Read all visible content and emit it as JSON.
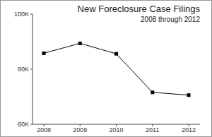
{
  "chart_data": {
    "type": "line",
    "title": "New Foreclosure Case Filings",
    "subtitle": "2008 through 2012",
    "categories": [
      "2008",
      "2009",
      "2010",
      "2011",
      "2012"
    ],
    "values": [
      85800,
      89400,
      85600,
      71600,
      70600
    ],
    "color": "#000000",
    "marker": "square",
    "line_style": "solid",
    "ylim": [
      60000,
      100000
    ],
    "yticks": [
      {
        "value": 60000,
        "label": "60K"
      },
      {
        "value": 80000,
        "label": "80K"
      },
      {
        "value": 100000,
        "label": "100K"
      }
    ],
    "grid": false
  }
}
